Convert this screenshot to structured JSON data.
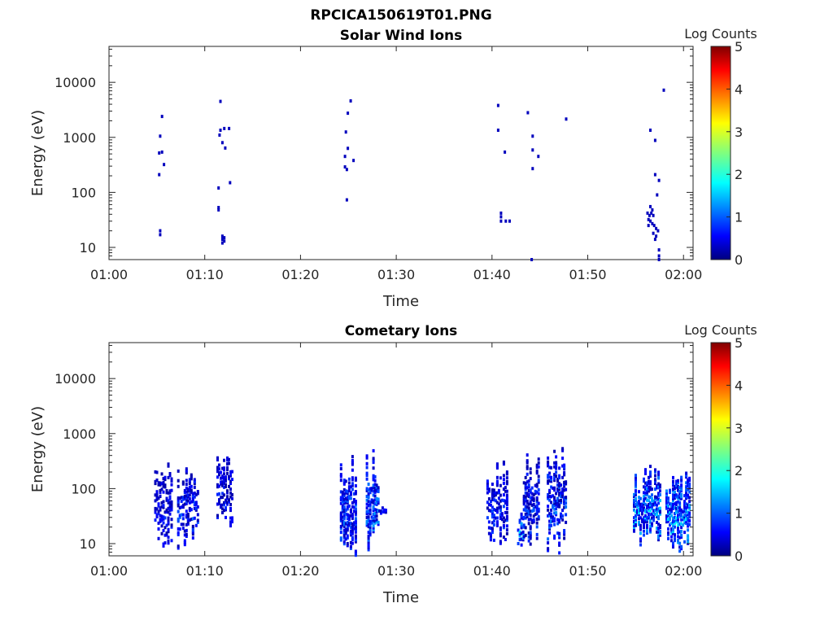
{
  "figure": {
    "title": "RPCICA150619T01.PNG"
  },
  "chart_data": [
    {
      "type": "heatmap",
      "title": "Solar Wind Ions",
      "xlabel": "Time",
      "ylabel": "Energy (eV)",
      "x_ticks": [
        "01:00",
        "01:10",
        "01:20",
        "01:30",
        "01:40",
        "01:50",
        "02:00"
      ],
      "y_ticks": [
        "10",
        "100",
        "1000",
        "10000"
      ],
      "y_scale": "log",
      "ylim": [
        6,
        45000
      ],
      "xlim_minutes": [
        0,
        61
      ],
      "grid": false,
      "colorbar": {
        "label": "Log Counts",
        "ticks": [
          "0",
          "1",
          "2",
          "3",
          "4",
          "5"
        ],
        "range": [
          0,
          5
        ],
        "colormap": "jet"
      },
      "points": [
        [
          5.5,
          2400,
          0.3
        ],
        [
          5.3,
          1050,
          0.3
        ],
        [
          5.5,
          540,
          0.3
        ],
        [
          5.2,
          520,
          0.3
        ],
        [
          5.7,
          320,
          0.3
        ],
        [
          5.2,
          210,
          0.3
        ],
        [
          5.3,
          20,
          0.3
        ],
        [
          5.3,
          17,
          0.3
        ],
        [
          11.6,
          4500,
          0.3
        ],
        [
          11.6,
          1350,
          0.3
        ],
        [
          11.5,
          1100,
          0.3
        ],
        [
          12.0,
          1450,
          0.3
        ],
        [
          12.5,
          1450,
          0.3
        ],
        [
          11.8,
          800,
          0.3
        ],
        [
          12.1,
          640,
          0.3
        ],
        [
          12.6,
          150,
          0.3
        ],
        [
          11.4,
          120,
          0.3
        ],
        [
          11.4,
          53,
          0.3
        ],
        [
          11.4,
          48,
          0.3
        ],
        [
          11.8,
          16,
          0.3
        ],
        [
          12.0,
          15,
          0.3
        ],
        [
          11.8,
          14,
          0.3
        ],
        [
          12.0,
          13,
          0.3
        ],
        [
          11.8,
          12,
          0.3
        ],
        [
          25.2,
          4600,
          0.3
        ],
        [
          24.9,
          2750,
          0.3
        ],
        [
          24.7,
          1250,
          0.3
        ],
        [
          24.9,
          630,
          0.3
        ],
        [
          24.6,
          450,
          0.3
        ],
        [
          25.5,
          380,
          0.3
        ],
        [
          24.6,
          290,
          0.3
        ],
        [
          24.8,
          260,
          0.3
        ],
        [
          24.8,
          73,
          0.3
        ],
        [
          40.6,
          3800,
          0.3
        ],
        [
          40.6,
          1350,
          0.3
        ],
        [
          41.3,
          540,
          0.3
        ],
        [
          40.9,
          42,
          0.3
        ],
        [
          40.9,
          36,
          0.3
        ],
        [
          40.9,
          30,
          0.3
        ],
        [
          41.4,
          30,
          0.3
        ],
        [
          41.8,
          30,
          0.3
        ],
        [
          44.1,
          6,
          0.3
        ],
        [
          43.7,
          2800,
          0.3
        ],
        [
          44.2,
          1050,
          0.3
        ],
        [
          44.2,
          590,
          0.3
        ],
        [
          44.8,
          450,
          0.3
        ],
        [
          44.2,
          270,
          0.3
        ],
        [
          47.7,
          2150,
          0.3
        ],
        [
          56.5,
          1350,
          0.3
        ],
        [
          57.0,
          880,
          0.3
        ],
        [
          57.9,
          7200,
          0.3
        ],
        [
          57.0,
          210,
          0.3
        ],
        [
          57.4,
          165,
          0.3
        ],
        [
          57.2,
          90,
          0.3
        ],
        [
          56.2,
          42,
          0.3
        ],
        [
          56.4,
          38,
          0.3
        ],
        [
          56.6,
          42,
          0.3
        ],
        [
          56.8,
          38,
          0.3
        ],
        [
          56.5,
          55,
          0.3
        ],
        [
          56.7,
          48,
          0.3
        ],
        [
          56.3,
          32,
          0.3
        ],
        [
          56.5,
          30,
          0.3
        ],
        [
          56.7,
          27,
          0.3
        ],
        [
          56.3,
          25,
          0.3
        ],
        [
          56.9,
          25,
          0.3
        ],
        [
          57.1,
          22,
          0.3
        ],
        [
          57.3,
          20,
          0.3
        ],
        [
          56.8,
          18,
          0.3
        ],
        [
          57.1,
          16,
          0.3
        ],
        [
          57.0,
          14,
          0.3
        ],
        [
          57.4,
          9,
          0.3
        ],
        [
          57.4,
          7,
          0.3
        ],
        [
          57.4,
          6,
          0.3
        ]
      ]
    },
    {
      "type": "heatmap",
      "title": "Cometary Ions",
      "xlabel": "Time",
      "ylabel": "Energy (eV)",
      "x_ticks": [
        "01:00",
        "01:10",
        "01:20",
        "01:30",
        "01:40",
        "01:50",
        "02:00"
      ],
      "y_ticks": [
        "10",
        "100",
        "1000",
        "10000"
      ],
      "y_scale": "log",
      "ylim": [
        6,
        45000
      ],
      "xlim_minutes": [
        0,
        61
      ],
      "grid": false,
      "colorbar": {
        "label": "Log Counts",
        "ticks": [
          "0",
          "1",
          "2",
          "3",
          "4",
          "5"
        ],
        "range": [
          0,
          5
        ],
        "colormap": "jet"
      },
      "bursts": [
        {
          "t": [
            4.8,
            6.6
          ],
          "e": [
            8,
            380
          ],
          "val": [
            0.2,
            0.9
          ],
          "density": 0.35
        },
        {
          "t": [
            7.2,
            9.3
          ],
          "e": [
            8,
            380
          ],
          "val": [
            0.2,
            1.2
          ],
          "density": 0.4
        },
        {
          "t": [
            11.3,
            12.9
          ],
          "e": [
            16,
            520
          ],
          "val": [
            0.2,
            1.0
          ],
          "density": 0.38
        },
        {
          "t": [
            24.2,
            25.8
          ],
          "e": [
            6,
            460
          ],
          "val": [
            0.3,
            1.3
          ],
          "density": 0.55
        },
        {
          "t": [
            26.9,
            28.2
          ],
          "e": [
            7,
            520
          ],
          "val": [
            0.3,
            1.6
          ],
          "density": 0.5
        },
        {
          "t": [
            28.2,
            29.0
          ],
          "e": [
            35,
            45
          ],
          "val": [
            0.3,
            0.8
          ],
          "density": 0.7
        },
        {
          "t": [
            39.5,
            41.6
          ],
          "e": [
            8,
            330
          ],
          "val": [
            0.2,
            1.1
          ],
          "density": 0.4
        },
        {
          "t": [
            42.7,
            43.3
          ],
          "e": [
            6,
            50
          ],
          "val": [
            0.3,
            1.9
          ],
          "density": 0.4
        },
        {
          "t": [
            43.3,
            45.0
          ],
          "e": [
            7,
            600
          ],
          "val": [
            0.2,
            1.2
          ],
          "density": 0.42
        },
        {
          "t": [
            45.8,
            47.8
          ],
          "e": [
            6,
            640
          ],
          "val": [
            0.2,
            1.4
          ],
          "density": 0.35
        },
        {
          "t": [
            54.8,
            57.6
          ],
          "e": [
            9,
            320
          ],
          "val": [
            0.3,
            1.9
          ],
          "density": 0.55
        },
        {
          "t": [
            58.2,
            60.6
          ],
          "e": [
            7,
            230
          ],
          "val": [
            0.4,
            1.9
          ],
          "density": 0.6
        }
      ]
    }
  ]
}
